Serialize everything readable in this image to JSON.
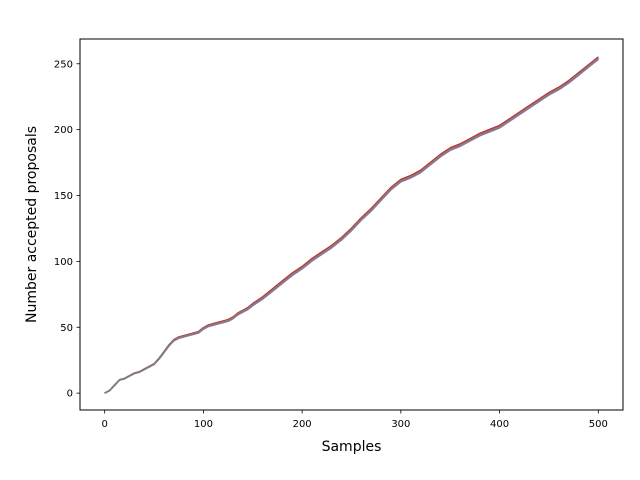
{
  "chart_data": {
    "type": "line",
    "title": "",
    "xlabel": "Samples",
    "ylabel": "Number accepted proposals",
    "xlim": [
      -25,
      525
    ],
    "ylim": [
      -12.8,
      268.8
    ],
    "xticks": [
      0,
      100,
      200,
      300,
      400,
      500
    ],
    "yticks": [
      0,
      50,
      100,
      150,
      200,
      250
    ],
    "grid": false,
    "legend": "none",
    "series_colors": [
      "#1f77b4",
      "#ff7f0e",
      "#2ca02c",
      "#d62728",
      "#9467bd",
      "#8c564b",
      "#e377c2",
      "#7f7f7f"
    ],
    "overlay_color": "#7f7f7f",
    "trace": {
      "x": [
        0,
        5,
        10,
        15,
        20,
        25,
        30,
        35,
        40,
        45,
        50,
        55,
        60,
        65,
        70,
        75,
        80,
        85,
        90,
        95,
        100,
        105,
        110,
        115,
        120,
        125,
        130,
        135,
        140,
        145,
        150,
        160,
        170,
        180,
        190,
        200,
        210,
        220,
        230,
        240,
        250,
        260,
        270,
        280,
        290,
        300,
        310,
        320,
        330,
        340,
        350,
        360,
        370,
        380,
        390,
        400,
        410,
        420,
        430,
        440,
        450,
        460,
        470,
        480,
        490,
        500
      ],
      "y": [
        0,
        2,
        6,
        10,
        11,
        13,
        15,
        16,
        18,
        20,
        22,
        26,
        31,
        36,
        40,
        42,
        43,
        44,
        45,
        46,
        49,
        51,
        52,
        53,
        54,
        55,
        57,
        60,
        62,
        64,
        67,
        72,
        78,
        84,
        90,
        95,
        101,
        106,
        111,
        117,
        124,
        132,
        139,
        147,
        155,
        161,
        164,
        168,
        174,
        180,
        185,
        188,
        192,
        196,
        199,
        202,
        207,
        212,
        217,
        222,
        227,
        231,
        236,
        242,
        248,
        254
      ]
    }
  }
}
